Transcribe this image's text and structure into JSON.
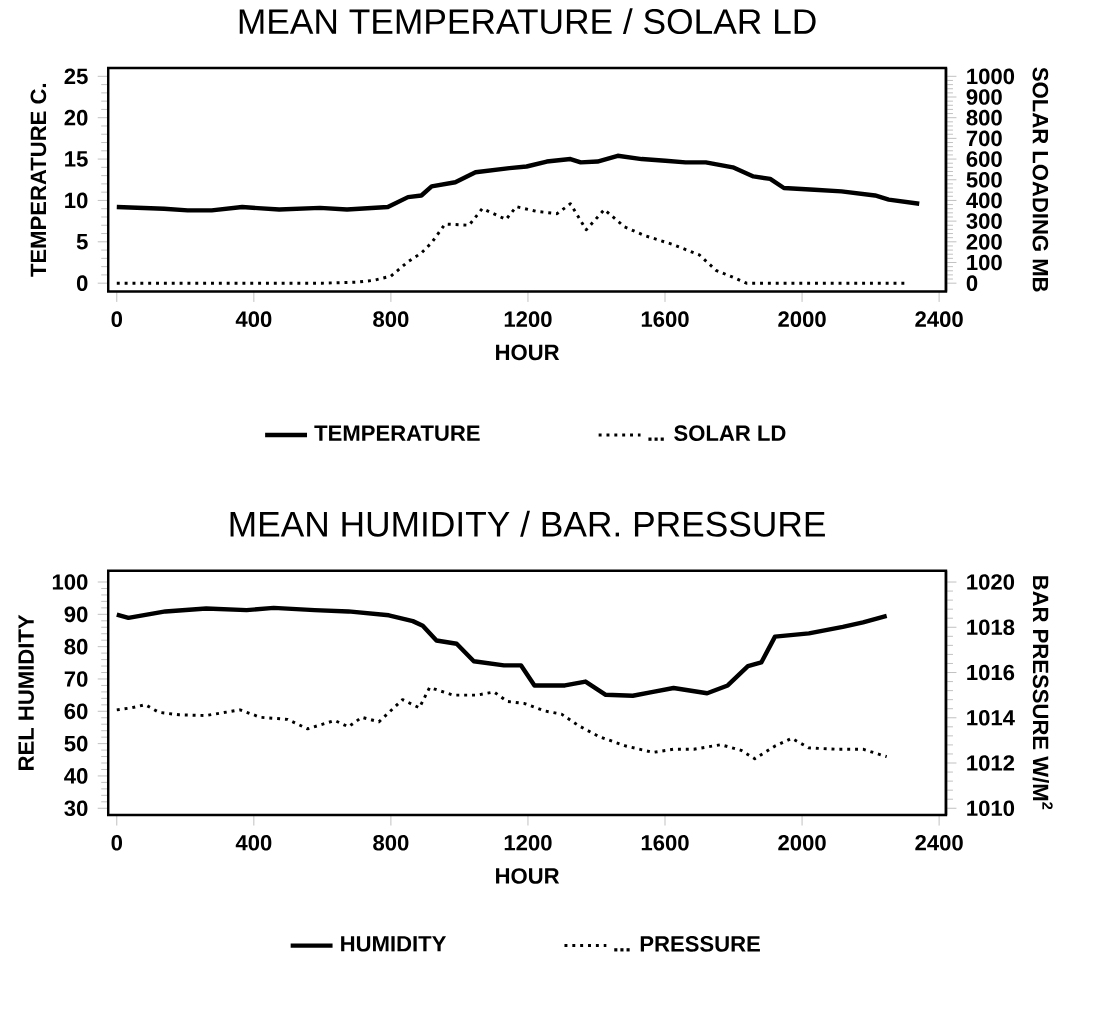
{
  "chart_data": [
    {
      "type": "line",
      "title": "MEAN TEMPERATURE / SOLAR LD",
      "xlabel": "HOUR",
      "ylabel": "TEMPERATURE C.",
      "y2label": "SOLAR LOADING MB",
      "xlim": [
        -25,
        2420
      ],
      "xticks": [
        0,
        400,
        800,
        1200,
        1600,
        2000,
        2400
      ],
      "ylim": [
        -1,
        26
      ],
      "yticks": [
        0,
        5,
        10,
        15,
        20,
        25
      ],
      "y2lim": [
        -40,
        1040
      ],
      "y2ticks": [
        0,
        100,
        200,
        300,
        400,
        500,
        600,
        700,
        800,
        900,
        1000
      ],
      "legend": "bottom",
      "series": [
        {
          "name": "TEMPERATURE",
          "color": "#000000",
          "line_style": "solid",
          "x": [
            0,
            138,
            207,
            277,
            366,
            474,
            593,
            672,
            791,
            850,
            889,
            919,
            988,
            1047,
            1146,
            1196,
            1255,
            1324,
            1354,
            1403,
            1462,
            1532,
            1601,
            1660,
            1719,
            1798,
            1858,
            1907,
            1947,
            2036,
            2115,
            2213,
            2253,
            2342
          ],
          "values": [
            9.2,
            9.0,
            8.8,
            8.8,
            9.2,
            8.9,
            9.1,
            8.9,
            9.2,
            10.4,
            10.6,
            11.7,
            12.2,
            13.4,
            13.9,
            14.1,
            14.7,
            15.0,
            14.6,
            14.7,
            15.4,
            15.0,
            14.8,
            14.6,
            14.6,
            14.0,
            12.9,
            12.6,
            11.5,
            11.3,
            11.1,
            10.6,
            10.1,
            9.6
          ]
        },
        {
          "name": "... SOLAR LD",
          "color": "#000000",
          "line_style": "dotted",
          "axis": "y2",
          "x": [
            0,
            200,
            400,
            600,
            700,
            751,
            800,
            850,
            889,
            919,
            958,
            1028,
            1067,
            1136,
            1166,
            1225,
            1285,
            1324,
            1370,
            1423,
            1482,
            1541,
            1621,
            1700,
            1749,
            1808,
            1838,
            2000,
            2150,
            2300
          ],
          "values": [
            0,
            0,
            0,
            0,
            5,
            14,
            34,
            104,
            146,
            196,
            286,
            280,
            361,
            308,
            370,
            347,
            336,
            384,
            258,
            356,
            272,
            230,
            188,
            137,
            62,
            22,
            0,
            0,
            0,
            0
          ]
        }
      ]
    },
    {
      "type": "line",
      "title": "MEAN HUMIDITY / BAR. PRESSURE",
      "xlabel": "HOUR",
      "ylabel": "REL HUMIDITY",
      "y2label": "BAR PRESSURE W/M$^{2}$",
      "xlim": [
        -25,
        2420
      ],
      "xticks": [
        0,
        400,
        800,
        1200,
        1600,
        2000,
        2400
      ],
      "ylim": [
        27.9,
        103.5
      ],
      "yticks": [
        30,
        40,
        50,
        60,
        70,
        80,
        90,
        100
      ],
      "y2lim": [
        1009.7,
        1020.5
      ],
      "y2ticks": [
        1010,
        1012,
        1014,
        1016,
        1018,
        1020
      ],
      "legend": "bottom",
      "series": [
        {
          "name": "HUMIDITY",
          "color": "#000000",
          "line_style": "solid",
          "x": [
            0,
            34,
            142,
            261,
            379,
            458,
            577,
            676,
            794,
            864,
            893,
            933,
            992,
            1042,
            1130,
            1180,
            1219,
            1308,
            1368,
            1427,
            1506,
            1565,
            1625,
            1723,
            1783,
            1842,
            1881,
            1921,
            2020,
            2119,
            2178,
            2247
          ],
          "values": [
            89.9,
            88.9,
            90.9,
            91.8,
            91.3,
            92.0,
            91.3,
            90.9,
            89.7,
            87.9,
            86.5,
            81.9,
            80.9,
            75.5,
            74.2,
            74.2,
            68.0,
            68.0,
            69.2,
            65.1,
            64.8,
            66.0,
            67.2,
            65.6,
            68.0,
            74.0,
            75.1,
            83.1,
            84.1,
            86.1,
            87.5,
            89.5
          ]
        },
        {
          "name": "... PRESSURE",
          "color": "#000000",
          "line_style": "dotted",
          "axis": "y2",
          "x": [
            0,
            43,
            83,
            123,
            182,
            261,
            360,
            419,
            498,
            557,
            636,
            676,
            715,
            765,
            834,
            883,
            913,
            982,
            1051,
            1101,
            1140,
            1190,
            1249,
            1298,
            1348,
            1407,
            1486,
            1565,
            1625,
            1684,
            1763,
            1822,
            1862,
            1921,
            1970,
            2020,
            2099,
            2178,
            2247
          ],
          "values": [
            1014.35,
            1014.44,
            1014.58,
            1014.24,
            1014.13,
            1014.1,
            1014.35,
            1014.02,
            1013.93,
            1013.51,
            1013.88,
            1013.6,
            1014.02,
            1013.82,
            1014.8,
            1014.44,
            1015.34,
            1015.0,
            1015.0,
            1015.14,
            1014.72,
            1014.63,
            1014.3,
            1014.16,
            1013.65,
            1013.17,
            1012.75,
            1012.47,
            1012.61,
            1012.61,
            1012.81,
            1012.56,
            1012.19,
            1012.75,
            1013.09,
            1012.67,
            1012.61,
            1012.61,
            1012.28
          ]
        }
      ]
    }
  ]
}
